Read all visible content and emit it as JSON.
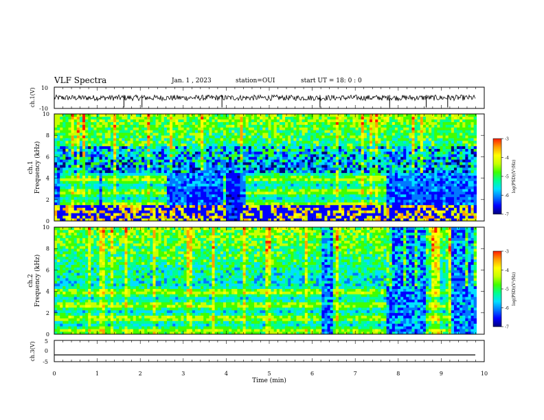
{
  "header": {
    "title": "VLF Spectra",
    "date": "Jan. 1 , 2023",
    "station": "station=OUI",
    "start": "start UT =  18: 0  : 0"
  },
  "colors": {
    "colormap": [
      "#00007a",
      "#0000ff",
      "#0078ff",
      "#00e0ff",
      "#00ff90",
      "#40ff00",
      "#c8ff00",
      "#ffff00",
      "#ffa000",
      "#ff1e00",
      "#ffffff"
    ],
    "trace": "#000000",
    "frame": "#000000"
  },
  "chart_data": [
    {
      "type": "line",
      "title": "",
      "ylabel": "ch.1(V)",
      "xlim": [
        0,
        10
      ],
      "ylim": [
        -10,
        10
      ],
      "yticks": [
        "10",
        "-10"
      ],
      "baseline": 0,
      "amplitude_approx": 1.2,
      "spikes_min": [
        1.62,
        2.04,
        3.9,
        6.18,
        7.8,
        8.65,
        9.15
      ]
    },
    {
      "type": "heatmap",
      "title": "",
      "channel": "ch.1",
      "xlabel": "",
      "ylabel": "Frequency (kHz)",
      "xlim": [
        0,
        10
      ],
      "ylim": [
        0,
        10
      ],
      "yticks": [
        "0",
        "2",
        "4",
        "6",
        "8",
        "10"
      ],
      "colorbar": {
        "label": "log(PSD)(V²/Hz)",
        "range": [
          -7,
          -3
        ],
        "ticks": [
          "-3",
          "-4",
          "-5",
          "-6",
          "-7"
        ]
      },
      "band_upper_khz": 4.6,
      "band_gaps_min": [
        [
          0.0,
          0.1
        ],
        [
          1.05,
          1.12
        ],
        [
          2.65,
          3.9
        ],
        [
          4.3,
          4.45
        ],
        [
          7.75,
          10
        ]
      ],
      "dropout_min": [
        [
          3.98,
          4.3
        ]
      ]
    },
    {
      "type": "heatmap",
      "title": "",
      "channel": "ch.2",
      "xlabel": "",
      "ylabel": "Frequency (kHz)",
      "xlim": [
        0,
        10
      ],
      "ylim": [
        0,
        10
      ],
      "yticks": [
        "0",
        "2",
        "4",
        "6",
        "8",
        "10"
      ],
      "colorbar": {
        "label": "log(PSD)(V²/Hz)",
        "range": [
          -7,
          -3
        ],
        "ticks": [
          "-3",
          "-4",
          "-5",
          "-6",
          "-7"
        ]
      },
      "band_upper_khz": 4.6,
      "dark_intervals_min": [
        [
          6.2,
          6.5
        ],
        [
          7.75,
          8.65
        ],
        [
          9.2,
          10
        ]
      ]
    },
    {
      "type": "line",
      "title": "",
      "ylabel": "ch.3(V)",
      "xlabel": "Time (min)",
      "xlim": [
        0,
        10
      ],
      "ylim": [
        -5,
        5
      ],
      "yticks": [
        "5",
        "0",
        "-5"
      ],
      "xticks": [
        "0",
        "1",
        "2",
        "3",
        "4",
        "5",
        "6",
        "7",
        "8",
        "9",
        "10"
      ],
      "constant_value": -1.8
    }
  ]
}
